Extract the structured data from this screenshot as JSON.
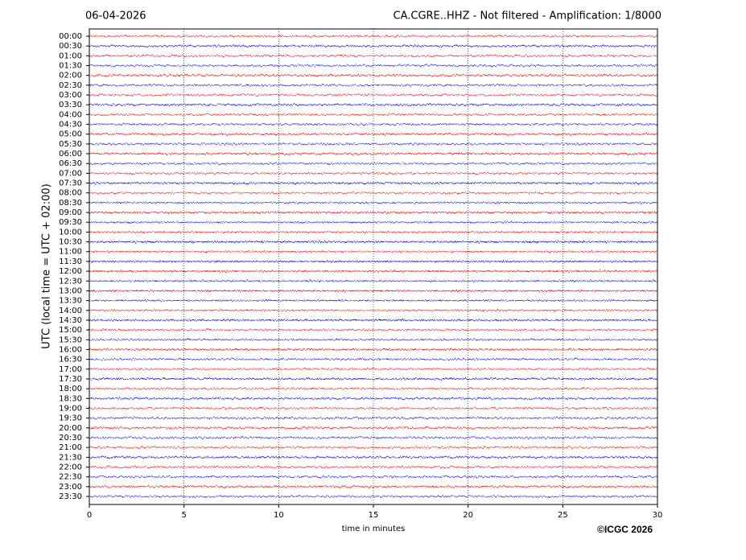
{
  "chart_data": {
    "type": "helicorder",
    "date": "06-04-2026",
    "title": "CA.CGRE..HHZ - Not filtered - Amplification: 1/8000",
    "ylabel": "UTC (local time = UTC + 02:00)",
    "xlabel": "time in minutes",
    "credit": "©ICGC 2026",
    "categories": [
      "00:00",
      "00:30",
      "01:00",
      "01:30",
      "02:00",
      "02:30",
      "03:00",
      "03:30",
      "04:00",
      "04:30",
      "05:00",
      "05:30",
      "06:00",
      "06:30",
      "07:00",
      "07:30",
      "08:00",
      "08:30",
      "09:00",
      "09:30",
      "10:00",
      "10:30",
      "11:00",
      "11:30",
      "12:00",
      "12:30",
      "13:00",
      "13:30",
      "14:00",
      "14:30",
      "15:00",
      "15:30",
      "16:00",
      "16:30",
      "17:00",
      "17:30",
      "18:00",
      "18:30",
      "19:00",
      "19:30",
      "20:00",
      "20:30",
      "21:00",
      "21:30",
      "22:00",
      "22:30",
      "23:00",
      "23:30"
    ],
    "colors": [
      "#ff0000",
      "#0000ff"
    ],
    "xlim": [
      0,
      30
    ],
    "xticks": [
      0,
      5,
      10,
      15,
      20,
      25,
      30
    ],
    "grid": true
  }
}
